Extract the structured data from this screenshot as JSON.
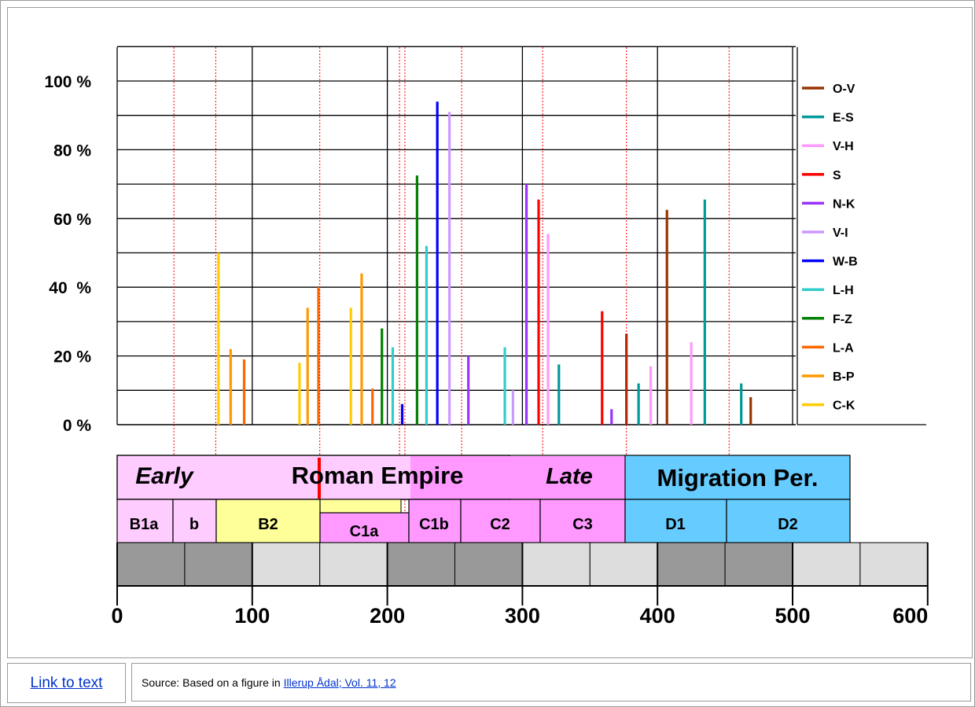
{
  "chart_data": {
    "type": "bar",
    "y_ticks": [
      "100 %",
      "80 %",
      "60 %",
      "40  %",
      "20 %",
      "0 %"
    ],
    "y_tick_values": [
      100,
      80,
      60,
      40,
      20,
      0
    ],
    "ylim": [
      0,
      110
    ],
    "x_ticks": [
      "0",
      "100",
      "200",
      "300",
      "400",
      "500",
      "600"
    ],
    "x_tick_values": [
      0,
      100,
      200,
      300,
      400,
      500,
      600
    ],
    "xlim": [
      0,
      600
    ],
    "legend": [
      {
        "name": "O-V",
        "color": "#993300"
      },
      {
        "name": "E-S",
        "color": "#009999"
      },
      {
        "name": "V-H",
        "color": "#ff99ff"
      },
      {
        "name": "S",
        "color": "#ff0000"
      },
      {
        "name": "N-K",
        "color": "#9933ff"
      },
      {
        "name": "V-I",
        "color": "#cc99ff"
      },
      {
        "name": "W-B",
        "color": "#0000ff"
      },
      {
        "name": "L-H",
        "color": "#33cccc"
      },
      {
        "name": "F-Z",
        "color": "#008000"
      },
      {
        "name": "L-A",
        "color": "#ff6600"
      },
      {
        "name": "B-P",
        "color": "#ff9900"
      },
      {
        "name": "C-K",
        "color": "#ffcc00"
      }
    ],
    "series": [
      {
        "name": "C-K",
        "points": [
          [
            75,
            50
          ],
          [
            135,
            18
          ],
          [
            173,
            34
          ]
        ]
      },
      {
        "name": "B-P",
        "points": [
          [
            84,
            22
          ],
          [
            141,
            34
          ],
          [
            181,
            44
          ]
        ]
      },
      {
        "name": "L-A",
        "points": [
          [
            94,
            19
          ],
          [
            149,
            40
          ],
          [
            189,
            10.5
          ]
        ]
      },
      {
        "name": "F-Z",
        "points": [
          [
            196,
            28
          ],
          [
            222,
            72.5
          ]
        ]
      },
      {
        "name": "L-H",
        "points": [
          [
            204,
            22.5
          ],
          [
            229,
            52
          ],
          [
            287,
            22.5
          ]
        ]
      },
      {
        "name": "W-B",
        "points": [
          [
            211,
            6
          ],
          [
            237,
            94
          ]
        ]
      },
      {
        "name": "V-I",
        "points": [
          [
            246,
            91
          ],
          [
            293,
            10
          ]
        ]
      },
      {
        "name": "N-K",
        "points": [
          [
            260,
            20
          ],
          [
            303,
            70
          ],
          [
            366,
            4.5
          ]
        ]
      },
      {
        "name": "V-H",
        "points": [
          [
            319,
            55.5
          ],
          [
            395,
            17
          ],
          [
            425,
            24
          ]
        ]
      },
      {
        "name": "S",
        "points": [
          [
            312,
            65.5
          ],
          [
            359,
            33
          ]
        ]
      },
      {
        "name": "E-S",
        "points": [
          [
            327,
            17.5
          ],
          [
            386,
            12
          ],
          [
            435,
            65.5
          ],
          [
            462,
            12
          ]
        ]
      },
      {
        "name": "O-V",
        "points": [
          [
            377,
            26.5
          ],
          [
            407,
            62.5
          ],
          [
            469,
            8
          ]
        ]
      }
    ],
    "period_boundaries": [
      42,
      73,
      150,
      209,
      213,
      255,
      315,
      377,
      453
    ],
    "eras": [
      {
        "label": "Early",
        "italic": true
      },
      {
        "label": "Roman Empire",
        "italic": false
      },
      {
        "label": "Late",
        "italic": true
      },
      {
        "label": "Migration Per.",
        "italic": false
      }
    ],
    "phases": [
      "B1a",
      "b",
      "B2",
      "C1a",
      "C1b",
      "C2",
      "C3",
      "D1",
      "D2"
    ]
  },
  "footer": {
    "link_text": "Link to text",
    "source_prefix": "Source: Based on a figure in",
    "source_link": "Illerup Ådal; Vol. 11, 12"
  }
}
